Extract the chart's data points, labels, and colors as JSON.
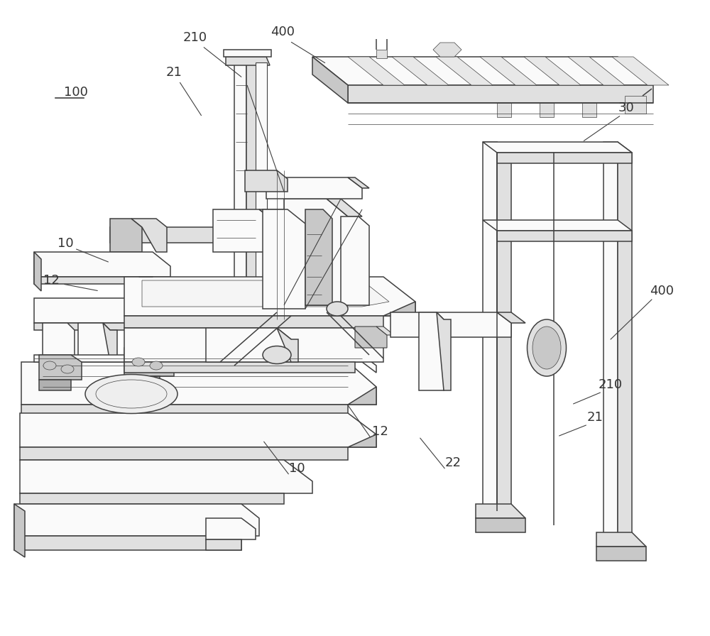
{
  "background_color": "#ffffff",
  "line_color": "#404040",
  "label_color": "#333333",
  "fig_width": 10.0,
  "fig_height": 8.96,
  "font_size": 13,
  "lw_main": 1.1,
  "lw_med": 0.8,
  "lw_thin": 0.5,
  "fill_light": "#f0f0f0",
  "fill_mid": "#e0e0e0",
  "fill_dark": "#c8c8c8",
  "fill_white": "#fafafa"
}
